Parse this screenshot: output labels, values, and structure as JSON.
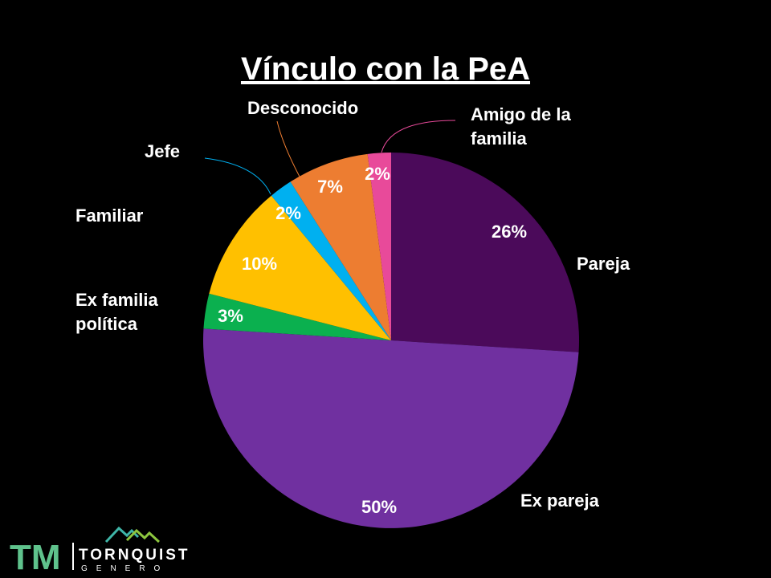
{
  "chart_data": {
    "type": "pie",
    "title": "Vínculo con la PeA",
    "categories": [
      "Pareja",
      "Ex pareja",
      "Ex familia política",
      "Familiar",
      "Jefe",
      "Desconocido",
      "Amigo de la familia"
    ],
    "display_labels": [
      [
        "Pareja"
      ],
      [
        "Ex pareja"
      ],
      [
        "Ex familia",
        "política"
      ],
      [
        "Familiar"
      ],
      [
        "Jefe"
      ],
      [
        "Desconocido"
      ],
      [
        "Amigo de la",
        "familia"
      ]
    ],
    "values": [
      26,
      50,
      3,
      10,
      2,
      7,
      2
    ],
    "value_labels": [
      "26%",
      "50%",
      "3%",
      "10%",
      "2%",
      "7%",
      "2%"
    ],
    "colors": [
      "#4b0a5a",
      "#7030a0",
      "#0bb04f",
      "#ffc000",
      "#00b0f0",
      "#ed7d31",
      "#e84a9a"
    ],
    "start": "12 o'clock",
    "direction": "clockwise",
    "legend": "none"
  },
  "logo": {
    "mark": "TM",
    "name": "TORNQUIST",
    "sub": "GENERO",
    "icon": "mountains-icon",
    "colors": {
      "mark": "#5fc28c",
      "mountain_left": "#3fb6a8",
      "mountain_right": "#8dc63f"
    }
  }
}
